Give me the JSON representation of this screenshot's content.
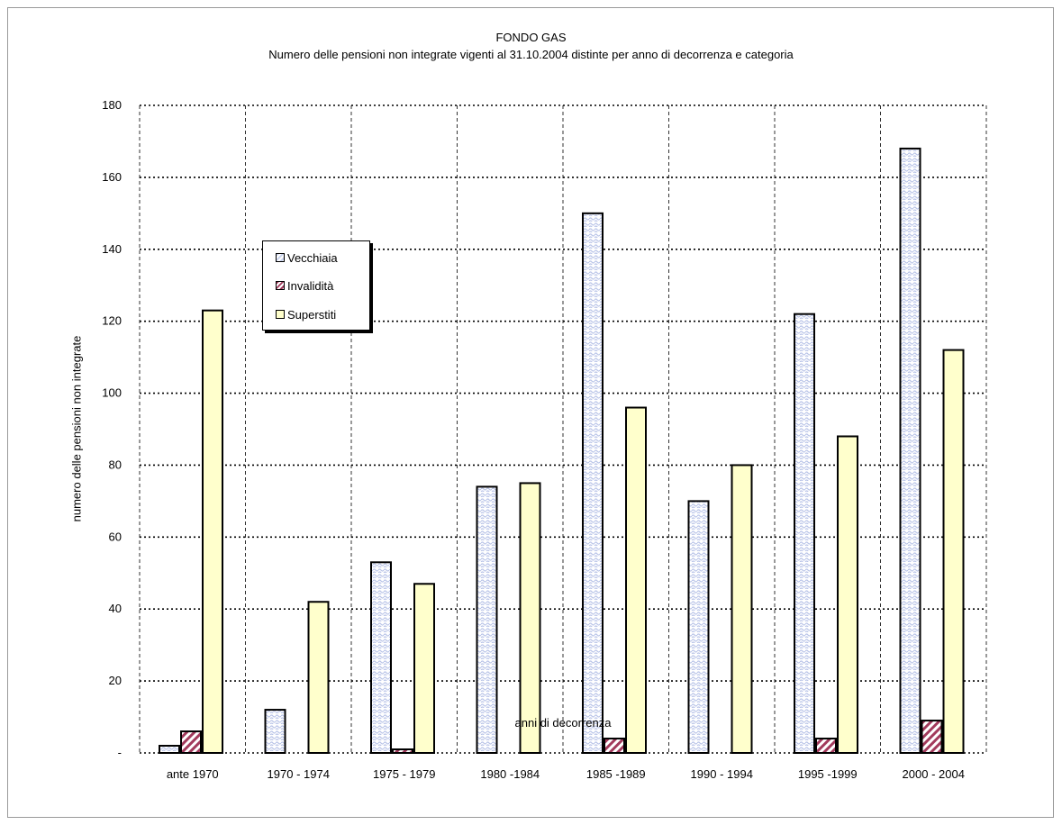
{
  "chart_data": {
    "type": "bar",
    "title": "FONDO GAS",
    "subtitle": "Numero delle pensioni non integrate vigenti al 31.10.2004 distinte per anno di decorrenza e categoria",
    "xlabel": "anni di decorrenza",
    "ylabel": "numero delle pensioni non integrate",
    "ylim": [
      0,
      180
    ],
    "yticks": [
      0,
      20,
      40,
      60,
      80,
      100,
      120,
      140,
      160,
      180
    ],
    "ytick_labels": [
      "-",
      "20",
      "40",
      "60",
      "80",
      "100",
      "120",
      "140",
      "160",
      "180"
    ],
    "grid": true,
    "legend_position": "upper-left-center",
    "categories": [
      "ante 1970",
      "1970 - 1974",
      "1975 - 1979",
      "1980 -1984",
      "1985 -1989",
      "1990 - 1994",
      "1995 -1999",
      "2000 - 2004"
    ],
    "series": [
      {
        "name": "Vecchiaia",
        "color": "#c9d3ef",
        "values": [
          2,
          12,
          53,
          74,
          150,
          70,
          122,
          168
        ]
      },
      {
        "name": "Invalidità",
        "color": "#a23a5c",
        "values": [
          6,
          0,
          1,
          0,
          4,
          0,
          4,
          9
        ]
      },
      {
        "name": "Superstiti",
        "color": "#ffffcc",
        "values": [
          123,
          42,
          47,
          75,
          96,
          80,
          88,
          112
        ]
      }
    ]
  }
}
